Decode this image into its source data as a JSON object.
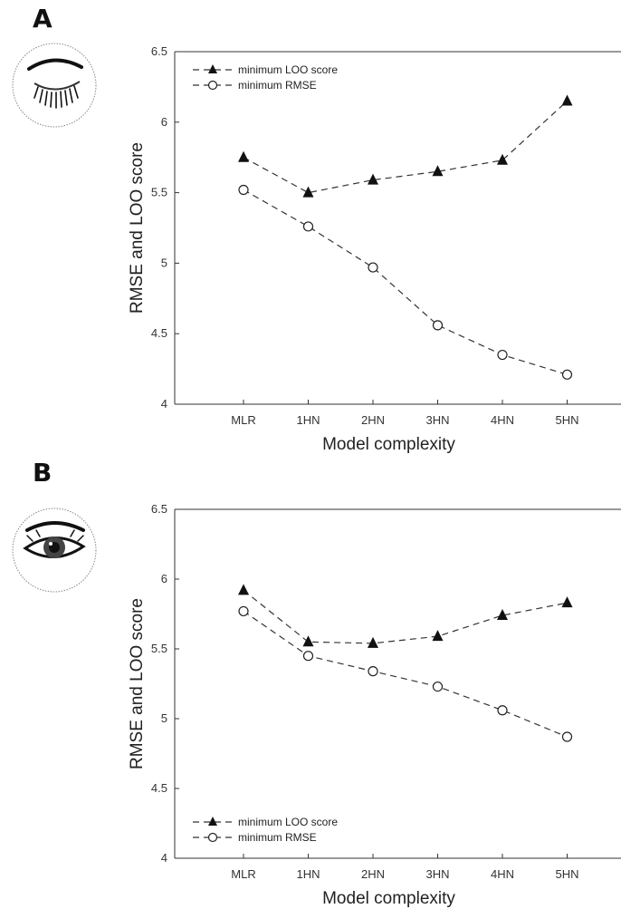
{
  "panels": [
    {
      "letter": "A",
      "eye_icon": "closed-eye-icon"
    },
    {
      "letter": "B",
      "eye_icon": "open-eye-icon"
    }
  ],
  "chart_data": [
    {
      "type": "line",
      "panel": "A",
      "categories": [
        "MLR",
        "1HN",
        "2HN",
        "3HN",
        "4HN",
        "5HN"
      ],
      "series": [
        {
          "name": "minimum LOO score",
          "marker": "filled-triangle",
          "values": [
            5.75,
            5.5,
            5.59,
            5.65,
            5.73,
            6.15
          ]
        },
        {
          "name": "minimum RMSE",
          "marker": "open-circle",
          "values": [
            5.52,
            5.26,
            4.97,
            4.56,
            4.35,
            4.21
          ]
        }
      ],
      "xlabel": "Model complexity",
      "ylabel": "RMSE and LOO score",
      "ylim": [
        4,
        6.5
      ],
      "yticks": [
        "4",
        "4.5",
        "5",
        "5.5",
        "6",
        "6.5"
      ],
      "grid": false,
      "legend_position": "top-left",
      "line_style": "dashed",
      "line_color": "#333333"
    },
    {
      "type": "line",
      "panel": "B",
      "categories": [
        "MLR",
        "1HN",
        "2HN",
        "3HN",
        "4HN",
        "5HN"
      ],
      "series": [
        {
          "name": "minimum LOO score",
          "marker": "filled-triangle",
          "values": [
            5.92,
            5.55,
            5.54,
            5.59,
            5.74,
            5.83
          ]
        },
        {
          "name": "minimum RMSE",
          "marker": "open-circle",
          "values": [
            5.77,
            5.45,
            5.34,
            5.23,
            5.06,
            4.87
          ]
        }
      ],
      "xlabel": "Model complexity",
      "ylabel": "RMSE and LOO score",
      "ylim": [
        4,
        6.5
      ],
      "yticks": [
        "4",
        "4.5",
        "5",
        "5.5",
        "6",
        "6.5"
      ],
      "grid": false,
      "legend_position": "bottom-left",
      "line_style": "dashed",
      "line_color": "#333333"
    }
  ]
}
